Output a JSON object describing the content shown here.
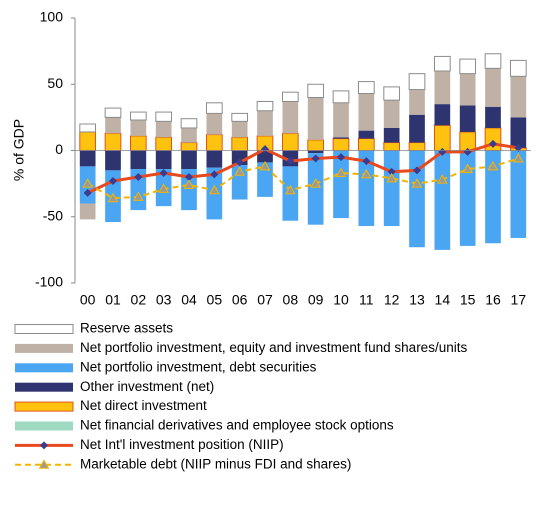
{
  "chart_data": {
    "type": "bar",
    "stacked": true,
    "y_label": "% of GDP",
    "categories": [
      "00",
      "01",
      "02",
      "03",
      "04",
      "05",
      "06",
      "07",
      "08",
      "09",
      "10",
      "11",
      "12",
      "13",
      "14",
      "15",
      "16",
      "17"
    ],
    "ylim": [
      -100,
      100
    ],
    "yticks": [
      -100,
      -50,
      0,
      50,
      100
    ],
    "series": [
      {
        "name": "Reserve assets",
        "type": "bar",
        "color": "#ffffff",
        "border": "#8c8c8c",
        "values": [
          6,
          7,
          6,
          7,
          7,
          8,
          6,
          7,
          7,
          10,
          9,
          9,
          10,
          12,
          11,
          11,
          11,
          12
        ]
      },
      {
        "name": "Net portfolio investment, equity and investment fund shares/units",
        "type": "bar",
        "color": "#bfb1a6",
        "values": [
          -12,
          12,
          12,
          12,
          11,
          16,
          12,
          19,
          24,
          32,
          26,
          28,
          21,
          19,
          25,
          24,
          29,
          31
        ]
      },
      {
        "name": "Net portfolio investment, debt securities",
        "type": "bar",
        "color": "#4aa6f2",
        "values": [
          -28,
          -39,
          -31,
          -28,
          -31,
          -39,
          -26,
          -26,
          -41,
          -54,
          -51,
          -57,
          -57,
          -73,
          -75,
          -72,
          -70,
          -66
        ]
      },
      {
        "name": "Other investment (net)",
        "type": "bar",
        "color": "#2d3470",
        "values": [
          -12,
          -15,
          -14,
          -14,
          -14,
          -13,
          -11,
          -9,
          -12,
          -2,
          1,
          6,
          11,
          21,
          16,
          20,
          16,
          23
        ]
      },
      {
        "name": "Net direct investment",
        "type": "bar",
        "color": "#ffc20e",
        "border": "#e0531b",
        "values": [
          14,
          13,
          11,
          10,
          6,
          12,
          10,
          11,
          13,
          8,
          9,
          9,
          6,
          6,
          19,
          14,
          17,
          2
        ]
      },
      {
        "name": "Net financial derivatives and employee stock options",
        "type": "bar",
        "color": "#9fd9c2",
        "values": [
          0,
          0,
          0,
          0,
          0,
          0,
          0,
          0,
          0,
          0,
          0,
          0,
          0,
          0,
          0,
          0,
          0,
          0
        ]
      },
      {
        "name": "Net Int'l investment position (NIIP)",
        "type": "line",
        "color": "#e8491d",
        "marker": "diamond",
        "marker_color": "#3b3b8f",
        "values": [
          -32,
          -23,
          -20,
          -17,
          -20,
          -18,
          -9,
          1,
          -8,
          -6,
          -5,
          -8,
          -16,
          -15,
          -1,
          -1,
          5,
          2
        ]
      },
      {
        "name": "Marketable debt (NIIP minus FDI and shares)",
        "type": "line",
        "color": "#f5b400",
        "dashed": true,
        "marker": "triangle",
        "marker_color": "#9a9a9a",
        "values": [
          -25,
          -36,
          -35,
          -29,
          -26,
          -30,
          -16,
          -12,
          -30,
          -25,
          -17,
          -18,
          -21,
          -25,
          -22,
          -14,
          -12,
          -6
        ]
      }
    ]
  }
}
